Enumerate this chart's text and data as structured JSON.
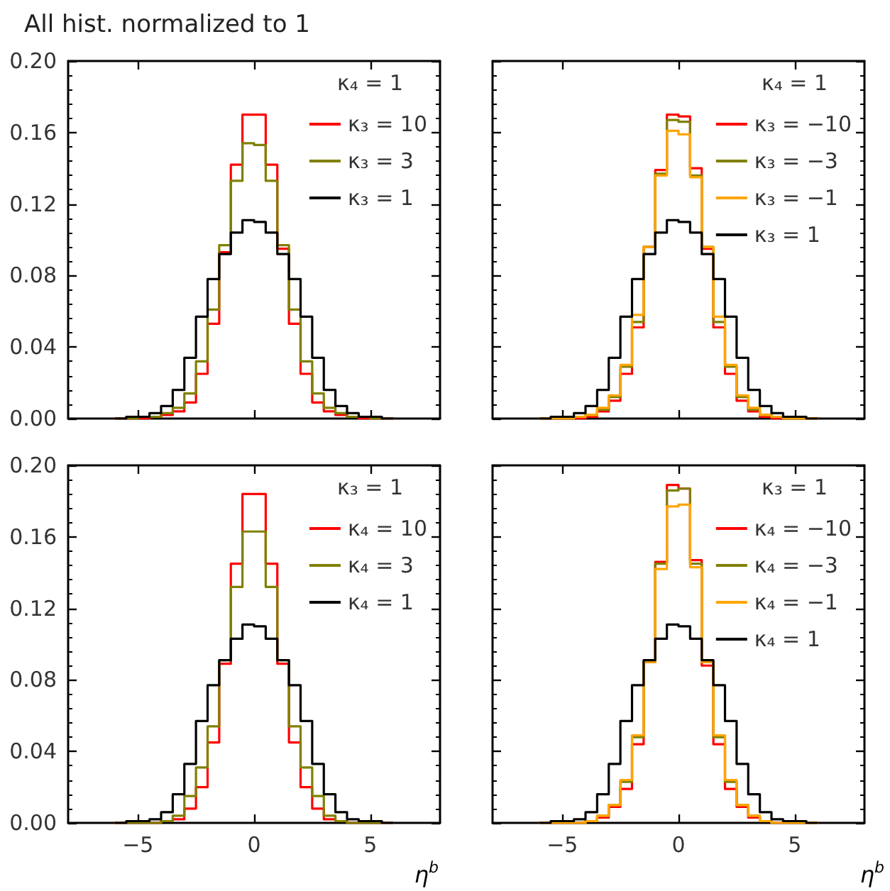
{
  "chart_data": [
    {
      "type": "histogram",
      "title": "All hist. normalized to 1",
      "legend_title": "κ₄ = 1",
      "bins": [
        -6,
        -5.5,
        -5,
        -4.5,
        -4,
        -3.5,
        -3,
        -2.5,
        -2,
        -1.5,
        -1,
        -0.5,
        0,
        0.5,
        1,
        1.5,
        2,
        2.5,
        3,
        3.5,
        4,
        4.5,
        5,
        5.5,
        6
      ],
      "xlim": [
        -8,
        8
      ],
      "xticks": [
        -5,
        0,
        5
      ],
      "ylim": [
        0,
        0.2
      ],
      "yticks": [
        {
          "value": 0,
          "label": "0.00"
        },
        {
          "value": 0.04,
          "label": "0.04"
        },
        {
          "value": 0.08,
          "label": "0.08"
        },
        {
          "value": 0.12,
          "label": "0.12"
        },
        {
          "value": 0.16,
          "label": "0.16"
        },
        {
          "value": 0.2,
          "label": "0.20"
        }
      ],
      "tick_labels": "y",
      "legend": "top right",
      "series": [
        {
          "name": "κ₃ = 10",
          "color": "#ff0000",
          "values": [
            0,
            0,
            0,
            0.001,
            0.002,
            0.004,
            0.009,
            0.025,
            0.053,
            0.093,
            0.142,
            0.17,
            0.17,
            0.142,
            0.095,
            0.053,
            0.025,
            0.009,
            0.004,
            0.002,
            0.001,
            0,
            0,
            0
          ]
        },
        {
          "name": "κ₃ = 3",
          "color": "#808000",
          "values": [
            0,
            0,
            0.001,
            0.001,
            0.003,
            0.006,
            0.014,
            0.032,
            0.061,
            0.097,
            0.133,
            0.154,
            0.153,
            0.133,
            0.097,
            0.061,
            0.032,
            0.014,
            0.006,
            0.003,
            0.001,
            0.001,
            0,
            0
          ]
        },
        {
          "name": "κ₃ = 1",
          "color": "#000000",
          "values": [
            0,
            0.001,
            0.001,
            0.003,
            0.007,
            0.016,
            0.034,
            0.057,
            0.078,
            0.092,
            0.104,
            0.111,
            0.11,
            0.104,
            0.092,
            0.078,
            0.057,
            0.034,
            0.016,
            0.007,
            0.003,
            0.001,
            0.001,
            0
          ]
        }
      ]
    },
    {
      "type": "histogram",
      "legend_title": "κ₄ = 1",
      "bins": [
        -6,
        -5.5,
        -5,
        -4.5,
        -4,
        -3.5,
        -3,
        -2.5,
        -2,
        -1.5,
        -1,
        -0.5,
        0,
        0.5,
        1,
        1.5,
        2,
        2.5,
        3,
        3.5,
        4,
        4.5,
        5,
        5.5,
        6
      ],
      "xlim": [
        -8,
        8
      ],
      "xticks": [
        -5,
        0,
        5
      ],
      "ylim": [
        0,
        0.2
      ],
      "yticks": [
        0,
        0.04,
        0.08,
        0.12,
        0.16,
        0.2
      ],
      "tick_labels": false,
      "legend": "top right",
      "series": [
        {
          "name": "κ₃ = −10",
          "color": "#ff0000",
          "values": [
            0,
            0,
            0,
            0,
            0.001,
            0.004,
            0.01,
            0.025,
            0.051,
            0.096,
            0.139,
            0.17,
            0.169,
            0.14,
            0.095,
            0.051,
            0.025,
            0.01,
            0.004,
            0.001,
            0,
            0,
            0,
            0
          ]
        },
        {
          "name": "κ₃ = −3",
          "color": "#808000",
          "values": [
            0,
            0,
            0,
            0.001,
            0.002,
            0.005,
            0.012,
            0.029,
            0.054,
            0.096,
            0.137,
            0.167,
            0.166,
            0.136,
            0.096,
            0.054,
            0.029,
            0.012,
            0.005,
            0.002,
            0.001,
            0,
            0,
            0
          ]
        },
        {
          "name": "κ₃ = −1",
          "color": "#ffa500",
          "values": [
            0,
            0,
            0,
            0.001,
            0.002,
            0.006,
            0.013,
            0.03,
            0.058,
            0.096,
            0.136,
            0.161,
            0.159,
            0.135,
            0.096,
            0.057,
            0.03,
            0.013,
            0.006,
            0.002,
            0.001,
            0,
            0,
            0
          ]
        },
        {
          "name": "κ₃ = 1",
          "color": "#000000",
          "values": [
            0,
            0.001,
            0.001,
            0.003,
            0.007,
            0.016,
            0.034,
            0.057,
            0.078,
            0.092,
            0.104,
            0.111,
            0.11,
            0.104,
            0.092,
            0.078,
            0.057,
            0.034,
            0.016,
            0.007,
            0.003,
            0.001,
            0.001,
            0
          ]
        }
      ]
    },
    {
      "type": "histogram",
      "legend_title": "κ₃ = 1",
      "xlabel": "η$^{b}$",
      "bins": [
        -6,
        -5.5,
        -5,
        -4.5,
        -4,
        -3.5,
        -3,
        -2.5,
        -2,
        -1.5,
        -1,
        -0.5,
        0,
        0.5,
        1,
        1.5,
        2,
        2.5,
        3,
        3.5,
        4,
        4.5,
        5,
        5.5,
        6
      ],
      "xlim": [
        -8,
        8
      ],
      "xticks": [
        -5,
        0,
        5
      ],
      "ylim": [
        0,
        0.2
      ],
      "yticks": [
        {
          "value": 0,
          "label": "0.00"
        },
        {
          "value": 0.04,
          "label": "0.04"
        },
        {
          "value": 0.08,
          "label": "0.08"
        },
        {
          "value": 0.12,
          "label": "0.12"
        },
        {
          "value": 0.16,
          "label": "0.16"
        },
        {
          "value": 0.2,
          "label": "0.20"
        }
      ],
      "legend": "top right",
      "series": [
        {
          "name": "κ₄ = 10",
          "color": "#ff0000",
          "values": [
            0,
            0,
            0,
            0,
            0.001,
            0.002,
            0.008,
            0.02,
            0.045,
            0.089,
            0.145,
            0.184,
            0.184,
            0.145,
            0.089,
            0.045,
            0.02,
            0.008,
            0.002,
            0.001,
            0,
            0,
            0,
            0
          ]
        },
        {
          "name": "κ₄ = 3",
          "color": "#808000",
          "values": [
            0,
            0,
            0,
            0,
            0.001,
            0.004,
            0.015,
            0.031,
            0.054,
            0.091,
            0.132,
            0.163,
            0.163,
            0.132,
            0.091,
            0.054,
            0.031,
            0.015,
            0.004,
            0.001,
            0,
            0,
            0,
            0
          ]
        },
        {
          "name": "κ₄ = 1",
          "color": "#000000",
          "values": [
            0,
            0.001,
            0.001,
            0.002,
            0.006,
            0.016,
            0.033,
            0.057,
            0.077,
            0.091,
            0.103,
            0.111,
            0.11,
            0.103,
            0.091,
            0.077,
            0.057,
            0.033,
            0.016,
            0.006,
            0.002,
            0.001,
            0.001,
            0
          ]
        }
      ]
    },
    {
      "type": "histogram",
      "legend_title": "κ₃ = 1",
      "xlabel": "η$^{b}$",
      "bins": [
        -6,
        -5.5,
        -5,
        -4.5,
        -4,
        -3.5,
        -3,
        -2.5,
        -2,
        -1.5,
        -1,
        -0.5,
        0,
        0.5,
        1,
        1.5,
        2,
        2.5,
        3,
        3.5,
        4,
        4.5,
        5,
        5.5,
        6
      ],
      "xlim": [
        -8,
        8
      ],
      "xticks": [
        -5,
        0,
        5
      ],
      "ylim": [
        0,
        0.2
      ],
      "yticks": [
        0,
        0.04,
        0.08,
        0.12,
        0.16,
        0.2
      ],
      "tick_labels": "x",
      "legend": "top right",
      "series": [
        {
          "name": "κ₄ = −10",
          "color": "#ff0000",
          "values": [
            0,
            0,
            0,
            0,
            0.001,
            0.003,
            0.009,
            0.019,
            0.044,
            0.09,
            0.146,
            0.189,
            0.187,
            0.147,
            0.088,
            0.044,
            0.019,
            0.009,
            0.003,
            0.001,
            0,
            0,
            0,
            0
          ]
        },
        {
          "name": "κ₄ = −3",
          "color": "#808000",
          "values": [
            0,
            0,
            0,
            0,
            0.001,
            0.004,
            0.01,
            0.023,
            0.048,
            0.09,
            0.145,
            0.186,
            0.187,
            0.145,
            0.09,
            0.048,
            0.023,
            0.01,
            0.004,
            0.001,
            0,
            0,
            0,
            0
          ]
        },
        {
          "name": "κ₄ = −1",
          "color": "#ffa500",
          "values": [
            0,
            0,
            0,
            0,
            0.001,
            0.004,
            0.01,
            0.024,
            0.049,
            0.09,
            0.142,
            0.177,
            0.178,
            0.143,
            0.09,
            0.049,
            0.024,
            0.01,
            0.004,
            0.001,
            0,
            0,
            0,
            0
          ]
        },
        {
          "name": "κ₄ = 1",
          "color": "#000000",
          "values": [
            0,
            0.001,
            0.001,
            0.002,
            0.006,
            0.016,
            0.033,
            0.057,
            0.077,
            0.091,
            0.103,
            0.111,
            0.11,
            0.103,
            0.091,
            0.077,
            0.057,
            0.033,
            0.016,
            0.006,
            0.002,
            0.001,
            0.001,
            0
          ]
        }
      ]
    }
  ]
}
